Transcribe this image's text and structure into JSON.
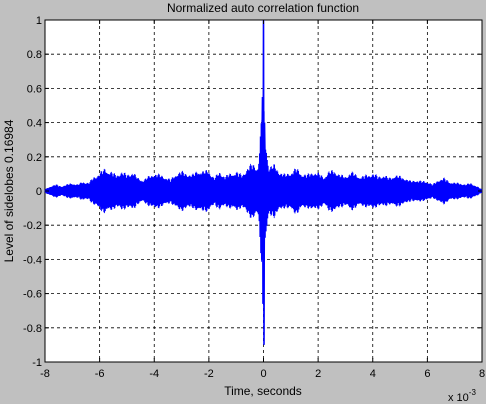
{
  "chart_data": {
    "type": "line",
    "title": "Normalized auto correlation function",
    "xlabel": "Time, seconds",
    "ylabel": "Level of sidelobes 0.16984",
    "x_multiplier": "x 10",
    "x_multiplier_exponent": "-3",
    "xlim": [
      -0.008,
      0.008
    ],
    "ylim": [
      -1,
      1
    ],
    "xticks": [
      -8,
      -6,
      -4,
      -2,
      0,
      2,
      4,
      6,
      8
    ],
    "yticks": [
      1,
      0.8,
      0.6,
      0.4,
      0.2,
      0,
      -0.2,
      -0.4,
      -0.6,
      -0.8,
      -1
    ],
    "grid": true,
    "line_color": "#0000ff",
    "series": [
      {
        "x": [
          -0.008,
          -0.0078,
          -0.0076,
          -0.0074,
          -0.0072,
          -0.007,
          -0.0068,
          -0.0066,
          -0.0064,
          -0.0062,
          -0.006,
          -0.0058,
          -0.0056,
          -0.0054,
          -0.0052,
          -0.005,
          -0.0048,
          -0.0046,
          -0.0044,
          -0.0042,
          -0.004,
          -0.0038,
          -0.0036,
          -0.0034,
          -0.0032,
          -0.003,
          -0.0028,
          -0.0026,
          -0.0024,
          -0.0022,
          -0.002,
          -0.0018,
          -0.0016,
          -0.0014,
          -0.0012,
          -0.001,
          -0.0008,
          -0.0006,
          -0.0004,
          -0.0002,
          -3e-05,
          0,
          3e-05,
          0.0002,
          0.0004,
          0.0006,
          0.0008,
          0.001,
          0.0012,
          0.0014,
          0.0016,
          0.0018,
          0.002,
          0.0022,
          0.0024,
          0.0026,
          0.0028,
          0.003,
          0.0032,
          0.0034,
          0.0036,
          0.0038,
          0.004,
          0.0042,
          0.0044,
          0.0046,
          0.0048,
          0.005,
          0.0052,
          0.0054,
          0.0056,
          0.0058,
          0.006,
          0.0062,
          0.0064,
          0.0066,
          0.0068,
          0.007,
          0.0072,
          0.0074,
          0.0076,
          0.0078,
          0.008
        ],
        "envelope": [
          0.01,
          0.03,
          0.04,
          0.03,
          0.04,
          0.05,
          0.04,
          0.06,
          0.05,
          0.09,
          0.11,
          0.14,
          0.12,
          0.1,
          0.12,
          0.1,
          0.12,
          0.08,
          0.07,
          0.09,
          0.11,
          0.1,
          0.09,
          0.07,
          0.11,
          0.12,
          0.11,
          0.1,
          0.13,
          0.12,
          0.13,
          0.08,
          0.12,
          0.09,
          0.11,
          0.12,
          0.1,
          0.14,
          0.17,
          0.15,
          0.55,
          1.0,
          0.4,
          0.15,
          0.16,
          0.12,
          0.1,
          0.12,
          0.14,
          0.11,
          0.1,
          0.12,
          0.11,
          0.09,
          0.12,
          0.13,
          0.1,
          0.09,
          0.12,
          0.1,
          0.09,
          0.1,
          0.11,
          0.09,
          0.1,
          0.08,
          0.1,
          0.09,
          0.08,
          0.06,
          0.07,
          0.06,
          0.06,
          0.04,
          0.07,
          0.08,
          0.06,
          0.05,
          0.05,
          0.04,
          0.05,
          0.03,
          0.01
        ]
      }
    ]
  }
}
